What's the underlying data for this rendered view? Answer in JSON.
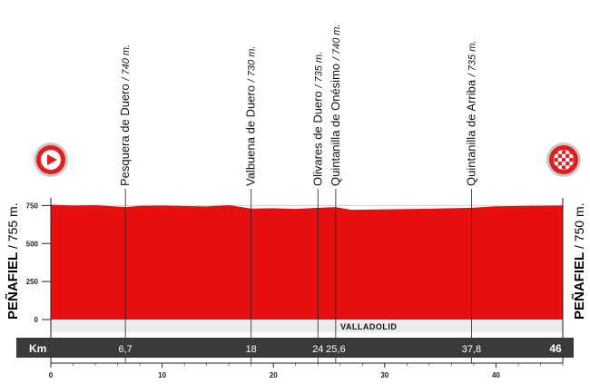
{
  "chart_data": {
    "type": "area",
    "start": {
      "name": "PEÑAFIEL",
      "altitude": "/ 755 m."
    },
    "finish": {
      "name": "PEÑAFIEL",
      "altitude": "/ 750 m."
    },
    "region": "VALLADOLID",
    "km_bar_label": "Km",
    "ylim": [
      0,
      800
    ],
    "yticks": [
      0,
      250,
      500,
      750
    ],
    "xlim": [
      0,
      46
    ],
    "xticks": [
      0,
      10,
      20,
      30,
      40
    ],
    "waypoints": [
      {
        "name": "Pesquera de Duero",
        "altitude": "/ 740 m.",
        "km": 6.7,
        "km_label": "6,7"
      },
      {
        "name": "Valbuena de Duero",
        "altitude": "/ 730 m.",
        "km": 18,
        "km_label": "18"
      },
      {
        "name": "Olivares de Duero",
        "altitude": "/ 735 m.",
        "km": 24,
        "km_label": "24"
      },
      {
        "name": "Quintanilla de Onésimo",
        "altitude": "/ 740 m.",
        "km": 25.6,
        "km_label": "25,6"
      },
      {
        "name": "Quintanilla de Arriba",
        "altitude": "/ 735 m.",
        "km": 37.8,
        "km_label": "37,8"
      }
    ],
    "finish_km_label": "46",
    "profile": {
      "x": [
        0,
        2,
        4,
        6.7,
        8,
        10,
        12,
        14,
        16,
        18,
        20,
        22,
        24,
        25.6,
        27,
        30,
        33,
        36,
        37.8,
        40,
        43,
        46
      ],
      "y": [
        755,
        750,
        752,
        740,
        748,
        750,
        746,
        744,
        752,
        730,
        732,
        728,
        735,
        740,
        722,
        725,
        728,
        732,
        735,
        745,
        748,
        750
      ]
    },
    "colors": {
      "fill": "#e8100f",
      "km_bar": "#3a3a3a",
      "axis": "#222222"
    },
    "icons": {
      "start": "play-arrow-icon",
      "finish": "checkered-flag-icon"
    }
  }
}
